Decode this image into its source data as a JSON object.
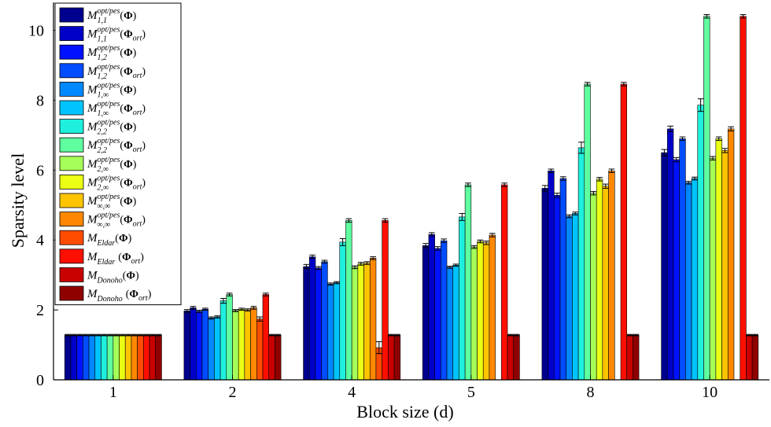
{
  "chart_data": {
    "type": "bar",
    "xlabel": "Block size (d)",
    "ylabel": "Sparsity level",
    "ylim": [
      0,
      10.8
    ],
    "yticks": [
      0,
      2,
      4,
      6,
      8,
      10
    ],
    "categories": [
      "1",
      "2",
      "4",
      "5",
      "8",
      "10"
    ],
    "legend_position": "top-left",
    "error_bars": true,
    "series": [
      {
        "name": "M_{1,1}^{opt/pes}(Φ)",
        "label": {
          "base": "M",
          "sub": "1,1",
          "sup": "opt/pes",
          "arg": "Φ",
          "argsub": ""
        },
        "color": "#00008f",
        "values": [
          1.28,
          1.97,
          3.24,
          3.84,
          5.48,
          6.5
        ],
        "errors": [
          0.02,
          0.04,
          0.06,
          0.06,
          0.08,
          0.09
        ]
      },
      {
        "name": "M_{1,1}^{opt/pes}(Φ_{ort})",
        "label": {
          "base": "M",
          "sub": "1,1",
          "sup": "opt/pes",
          "arg": "Φ",
          "argsub": "ort"
        },
        "color": "#0000c9",
        "values": [
          1.28,
          2.06,
          3.52,
          4.16,
          5.98,
          7.18
        ],
        "errors": [
          0.02,
          0.04,
          0.05,
          0.05,
          0.05,
          0.08
        ]
      },
      {
        "name": "M_{1,2}^{opt/pes}(Φ)",
        "label": {
          "base": "M",
          "sub": "1,2",
          "sup": "opt/pes",
          "arg": "Φ",
          "argsub": ""
        },
        "color": "#0011ff",
        "values": [
          1.28,
          1.96,
          3.2,
          3.76,
          5.28,
          6.3
        ],
        "errors": [
          0.02,
          0.03,
          0.04,
          0.05,
          0.06,
          0.06
        ]
      },
      {
        "name": "M_{1,2}^{opt/pes}(Φ_{ort})",
        "label": {
          "base": "M",
          "sub": "1,2",
          "sup": "opt/pes",
          "arg": "Φ",
          "argsub": "ort"
        },
        "color": "#004cff",
        "values": [
          1.28,
          2.02,
          3.38,
          3.98,
          5.76,
          6.9
        ],
        "errors": [
          0.02,
          0.03,
          0.04,
          0.05,
          0.05,
          0.05
        ]
      },
      {
        "name": "M_{1,∞}^{opt/pes}(Φ)",
        "label": {
          "base": "M",
          "sub": "1,∞",
          "sup": "opt/pes",
          "arg": "Φ",
          "argsub": ""
        },
        "color": "#0088ff",
        "values": [
          1.28,
          1.77,
          2.74,
          3.22,
          4.68,
          5.64
        ],
        "errors": [
          0.02,
          0.03,
          0.03,
          0.03,
          0.04,
          0.04
        ]
      },
      {
        "name": "M_{1,∞}^{opt/pes}(Φ_{ort})",
        "label": {
          "base": "M",
          "sub": "1,∞",
          "sup": "opt/pes",
          "arg": "Φ",
          "argsub": "ort"
        },
        "color": "#00c4ff",
        "values": [
          1.28,
          1.8,
          2.78,
          3.28,
          4.76,
          5.76
        ],
        "errors": [
          0.02,
          0.03,
          0.03,
          0.03,
          0.04,
          0.04
        ]
      },
      {
        "name": "M_{2,2}^{opt/pes}(Φ)",
        "label": {
          "base": "M",
          "sub": "2,2",
          "sup": "opt/pes",
          "arg": "Φ",
          "argsub": ""
        },
        "color": "#1ff0de",
        "values": [
          1.28,
          2.26,
          3.94,
          4.66,
          6.64,
          7.86
        ],
        "errors": [
          0.02,
          0.07,
          0.1,
          0.1,
          0.16,
          0.18
        ]
      },
      {
        "name": "M_{2,2}^{opt/pes}(Φ_{ort})",
        "label": {
          "base": "M",
          "sub": "2,2",
          "sup": "opt/pes",
          "arg": "Φ",
          "argsub": "ort"
        },
        "color": "#5fffa0",
        "values": [
          1.28,
          2.44,
          4.56,
          5.58,
          8.46,
          10.4
        ],
        "errors": [
          0.02,
          0.04,
          0.05,
          0.05,
          0.05,
          0.05
        ]
      },
      {
        "name": "M_{2,∞}^{opt/pes}(Φ)",
        "label": {
          "base": "M",
          "sub": "2,∞",
          "sup": "opt/pes",
          "arg": "Φ",
          "argsub": ""
        },
        "color": "#a6ff59",
        "values": [
          1.28,
          1.98,
          3.22,
          3.8,
          5.34,
          6.34
        ],
        "errors": [
          0.02,
          0.03,
          0.04,
          0.04,
          0.05,
          0.05
        ]
      },
      {
        "name": "M_{2,∞}^{opt/pes}(Φ_{ort})",
        "label": {
          "base": "M",
          "sub": "2,∞",
          "sup": "opt/pes",
          "arg": "Φ",
          "argsub": "ort"
        },
        "color": "#eaff14",
        "values": [
          1.28,
          2.02,
          3.32,
          3.96,
          5.74,
          6.9
        ],
        "errors": [
          0.02,
          0.03,
          0.04,
          0.04,
          0.05,
          0.05
        ]
      },
      {
        "name": "M_{∞,∞}^{opt/pes}(Φ)",
        "label": {
          "base": "M",
          "sub": "∞,∞",
          "sup": "opt/pes",
          "arg": "Φ",
          "argsub": ""
        },
        "color": "#ffc400",
        "values": [
          1.28,
          2.0,
          3.34,
          3.92,
          5.54,
          6.56
        ],
        "errors": [
          0.02,
          0.03,
          0.04,
          0.05,
          0.06,
          0.06
        ]
      },
      {
        "name": "M_{∞,∞}^{opt/pes}(Φ_{ort})",
        "label": {
          "base": "M",
          "sub": "∞,∞",
          "sup": "opt/pes",
          "arg": "Φ",
          "argsub": "ort"
        },
        "color": "#ff8800",
        "values": [
          1.28,
          2.06,
          3.48,
          4.14,
          5.98,
          7.18
        ],
        "errors": [
          0.02,
          0.04,
          0.04,
          0.05,
          0.05,
          0.06
        ]
      },
      {
        "name": "M_{Eldar}(Φ)",
        "label": {
          "base": "M",
          "sub": "Eldar",
          "sup": "",
          "arg": "Φ",
          "argsub": ""
        },
        "color": "#ff4c00",
        "values": [
          1.28,
          1.74,
          0.92,
          null,
          null,
          null
        ],
        "errors": [
          0.02,
          0.06,
          0.17,
          0,
          0,
          0
        ]
      },
      {
        "name": "M_{Eldar} (Φ_{ort})",
        "label": {
          "base": "M",
          "sub": "Eldar",
          "sup": "",
          "arg": "Φ",
          "argsub": "ort"
        },
        "color": "#ff0f00",
        "values": [
          1.28,
          2.44,
          4.56,
          5.58,
          8.46,
          10.4
        ],
        "errors": [
          0.02,
          0.04,
          0.05,
          0.05,
          0.05,
          0.05
        ]
      },
      {
        "name": "M_{Donoho}(Φ)",
        "label": {
          "base": "M",
          "sub": "Donoho",
          "sup": "",
          "arg": "Φ",
          "argsub": ""
        },
        "color": "#c90000",
        "values": [
          1.28,
          1.28,
          1.28,
          1.28,
          1.28,
          1.28
        ],
        "errors": [
          0.02,
          0.02,
          0.02,
          0.02,
          0.02,
          0.02
        ]
      },
      {
        "name": "M_{Donoho}(Φ_{ort})",
        "label": {
          "base": "M",
          "sub": "Donoho",
          "sup": "",
          "arg": "Φ",
          "argsub": "ort"
        },
        "color": "#8f0000",
        "values": [
          1.28,
          1.28,
          1.28,
          1.28,
          1.28,
          1.28
        ],
        "errors": [
          0.02,
          0.02,
          0.02,
          0.02,
          0.02,
          0.02
        ]
      }
    ]
  }
}
